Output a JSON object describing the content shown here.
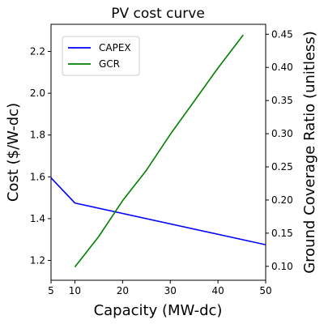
{
  "chart_data": {
    "type": "line",
    "title": "PV cost curve",
    "xlabel": "Capacity (MW-dc)",
    "ylabel": "Cost ($/W-dc)",
    "y2label": "Ground Coverage Ratio (unitless)",
    "xlim": [
      5,
      50
    ],
    "ylim": [
      1.105,
      2.33
    ],
    "y2lim": [
      0.079,
      0.465
    ],
    "xticks": [
      5,
      10,
      20,
      30,
      40,
      50
    ],
    "yticks": [
      1.2,
      1.4,
      1.6,
      1.8,
      2.0,
      2.2
    ],
    "y2ticks": [
      0.1,
      0.15,
      0.2,
      0.25,
      0.3,
      0.35,
      0.4,
      0.45
    ],
    "grid": false,
    "legend_position": "upper-left",
    "series": [
      {
        "name": "CAPEX",
        "axis": "left",
        "color": "#0000ff",
        "x": [
          5,
          10,
          50
        ],
        "y": [
          1.595,
          1.475,
          1.275
        ]
      },
      {
        "name": "GCR",
        "axis": "right",
        "color": "#008000",
        "x": [
          10,
          15,
          20,
          25,
          30,
          35,
          40,
          45.3
        ],
        "y": [
          0.099,
          0.145,
          0.199,
          0.245,
          0.299,
          0.349,
          0.399,
          0.449
        ]
      }
    ]
  }
}
